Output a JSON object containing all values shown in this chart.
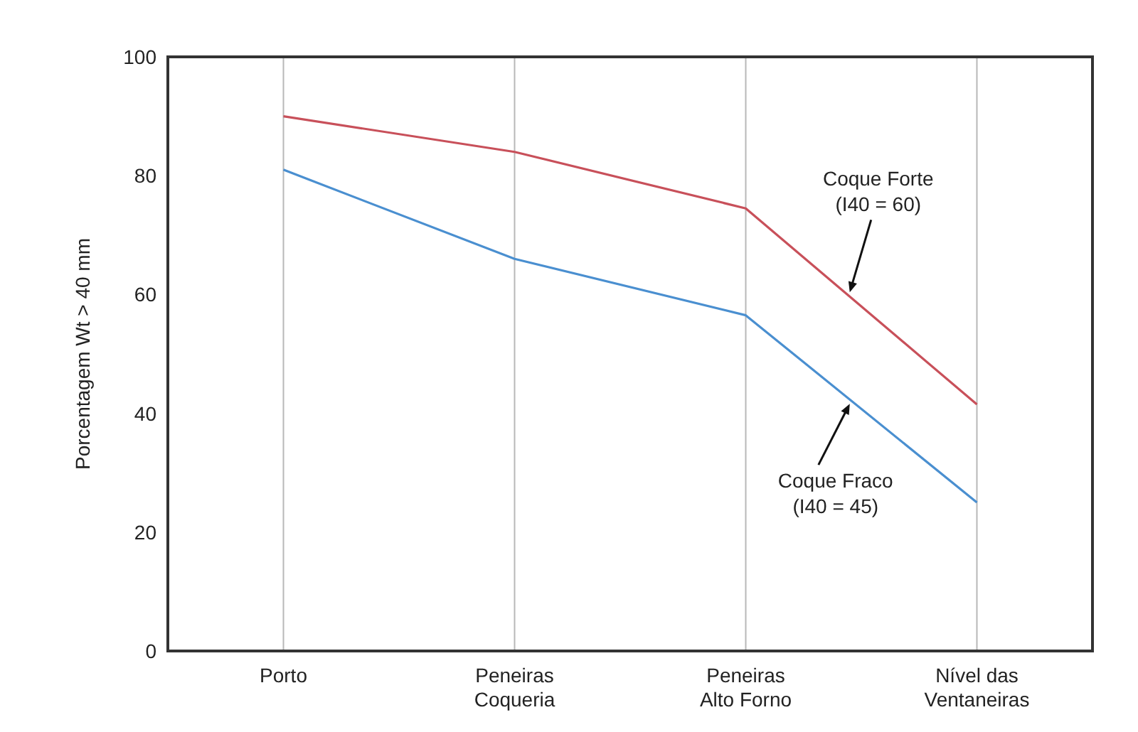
{
  "chart_data": {
    "type": "line",
    "ylabel": "Porcentagem Wt > 40 mm",
    "categories": [
      "Porto",
      "Peneiras Coqueria",
      "Peneiras Alto Forno",
      "Nível das Ventaneiras"
    ],
    "series": [
      {
        "name": "Coque Forte (I40 = 60)",
        "color": "#c8505a",
        "values": [
          90,
          84,
          74.5,
          41.5
        ]
      },
      {
        "name": "Coque Fraco (I40 = 45)",
        "color": "#4a8fd0",
        "values": [
          81,
          66,
          56.5,
          25
        ]
      }
    ],
    "ylim": [
      0,
      100
    ],
    "yticks": [
      0,
      20,
      40,
      60,
      80,
      100
    ],
    "grid": "x",
    "legend": false,
    "marker": "none",
    "line_style": "solid"
  }
}
